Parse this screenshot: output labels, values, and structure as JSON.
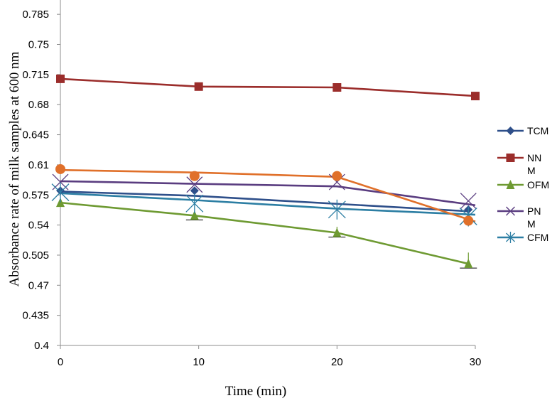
{
  "chart_data": {
    "type": "line",
    "title": "",
    "xlabel": "Time (min)",
    "ylabel": "Absorbance rate of milk samples at 600 nm",
    "xlim": [
      0,
      30
    ],
    "ylim": [
      0.4,
      0.8
    ],
    "xticks": [
      "0",
      "10",
      "20",
      "30"
    ],
    "yticks": [
      "0.4",
      "0.435",
      "0.47",
      "0.505",
      "0.54",
      "0.575",
      "0.61",
      "0.645",
      "0.68",
      "0.715",
      "0.75",
      "0.785"
    ],
    "grid": false,
    "legend_position": "right",
    "series": [
      {
        "name": "TCM",
        "color": "#2E4F8A",
        "marker": "diamond",
        "x": [
          0,
          9.7,
          29.5
        ],
        "y": [
          0.579,
          0.574,
          0.556
        ],
        "marker_x": [
          0,
          9.7,
          29.5
        ],
        "marker_y": [
          0.58,
          0.58,
          0.558
        ]
      },
      {
        "name": "NN\nM",
        "color": "#9B2D2B",
        "marker": "square",
        "x": [
          0,
          10,
          20,
          30
        ],
        "y": [
          0.71,
          0.701,
          0.7,
          0.69
        ]
      },
      {
        "name": "OFM",
        "color": "#6E9A32",
        "marker": "triangle",
        "x": [
          0,
          9.7,
          20,
          29.5
        ],
        "y": [
          0.566,
          0.551,
          0.531,
          0.495
        ]
      },
      {
        "name": "PN\nM",
        "color": "#5A3D80",
        "marker": "x",
        "x": [
          0,
          9.7,
          20,
          30
        ],
        "y": [
          0.591,
          0.588,
          0.585,
          0.563
        ],
        "marker_x": [
          0,
          9.7,
          20,
          29.5
        ],
        "marker_y": [
          0.59,
          0.587,
          0.59,
          0.568
        ]
      },
      {
        "name": "CFM",
        "color": "#2C7EA3",
        "marker": "asterisk",
        "x": [
          0,
          9.7,
          20,
          30
        ],
        "y": [
          0.577,
          0.569,
          0.559,
          0.552
        ],
        "marker_x": [
          0,
          9.7,
          20,
          29.5
        ],
        "marker_y": [
          0.578,
          0.565,
          0.558,
          0.55
        ]
      },
      {
        "name": "",
        "color": "#E0702A",
        "marker": "circle",
        "x": [
          0,
          10,
          20,
          30
        ],
        "y": [
          0.604,
          0.601,
          0.596,
          0.544
        ],
        "marker_x": [
          0,
          9.7,
          20,
          29.5
        ],
        "marker_y": [
          0.605,
          0.597,
          0.597,
          0.545
        ]
      }
    ],
    "error_bars": [
      {
        "x": 9.7,
        "y": 0.551,
        "low": 0.546,
        "high": 0.556,
        "color": "#6E9A32"
      },
      {
        "x": 20,
        "y": 0.531,
        "low": 0.526,
        "high": 0.538,
        "color": "#6E9A32"
      },
      {
        "x": 29.5,
        "y": 0.495,
        "low": 0.49,
        "high": 0.508,
        "color": "#6E9A32"
      }
    ]
  }
}
